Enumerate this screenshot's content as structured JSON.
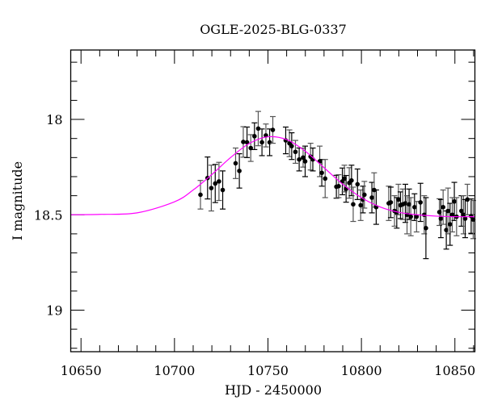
{
  "chart_data": {
    "type": "scatter",
    "title": "OGLE-2025-BLG-0337",
    "xlabel": "HJD - 2450000",
    "ylabel": "I magnitude",
    "xlim": [
      10644.5,
      10860.7
    ],
    "ylim": [
      19.218,
      17.636
    ],
    "y_inverted": true,
    "xticks": [
      10650,
      10700,
      10750,
      10800,
      10850
    ],
    "xtick_labels": [
      "10650",
      "10700",
      "10750",
      "10800",
      "10850"
    ],
    "yticks": [
      18,
      18.5,
      19
    ],
    "ytick_labels": [
      "18",
      "18.5",
      "19"
    ],
    "grid": false,
    "colors": {
      "data": "#000000",
      "model": "#ff00ff"
    },
    "series": [
      {
        "kind": "points-with-errorbars",
        "x": [
          10713.9,
          10717.7,
          10719.7,
          10721.8,
          10723.8,
          10725.8,
          10732.7,
          10734.7,
          10736.8,
          10738.8,
          10740.8,
          10742.8,
          10744.8,
          10746.8,
          10748.9,
          10750.9,
          10752.6,
          10759.5,
          10761.5,
          10762.7,
          10764.7,
          10766.7,
          10768.8,
          10769.9,
          10772.8,
          10774.0,
          10777.7,
          10778.8,
          10780.6,
          10786.6,
          10787.8,
          10789.8,
          10790.9,
          10791.8,
          10793.5,
          10794.7,
          10795.6,
          10797.9,
          10799.6,
          10800.8,
          10801.6,
          10805.6,
          10806.8,
          10807.9,
          10814.6,
          10815.7,
          10817.7,
          10818.9,
          10819.8,
          10820.9,
          10822.1,
          10823.5,
          10824.4,
          10825.5,
          10826.4,
          10828.4,
          10829.5,
          10831.6,
          10833.6,
          10834.5,
          10841.7,
          10842.5,
          10843.7,
          10845.4,
          10846.3,
          10847.4,
          10848.6,
          10849.7,
          10850.9,
          10853.5,
          10854.6,
          10855.5,
          10856.7,
          10858.7,
          10859.8
        ],
        "y": [
          18.395,
          18.307,
          18.36,
          18.336,
          18.325,
          18.37,
          18.23,
          18.27,
          18.118,
          18.12,
          18.15,
          18.088,
          18.048,
          18.12,
          18.084,
          18.12,
          18.055,
          18.11,
          18.125,
          18.14,
          18.17,
          18.21,
          18.2,
          18.22,
          18.195,
          18.21,
          18.22,
          18.28,
          18.31,
          18.353,
          18.35,
          18.325,
          18.31,
          18.364,
          18.333,
          18.32,
          18.445,
          18.34,
          18.45,
          18.42,
          18.395,
          18.41,
          18.37,
          18.46,
          18.44,
          18.435,
          18.48,
          18.49,
          18.42,
          18.45,
          18.445,
          18.44,
          18.5,
          18.445,
          18.51,
          18.46,
          18.51,
          18.435,
          18.5,
          18.57,
          18.486,
          18.52,
          18.46,
          18.58,
          18.48,
          18.55,
          18.5,
          18.43,
          18.51,
          18.48,
          18.5,
          18.52,
          18.42,
          18.507,
          18.525
        ],
        "err": [
          0.075,
          0.11,
          0.12,
          0.1,
          0.1,
          0.1,
          0.08,
          0.09,
          0.08,
          0.08,
          0.07,
          0.07,
          0.09,
          0.07,
          0.06,
          0.07,
          0.07,
          0.07,
          0.07,
          0.07,
          0.06,
          0.06,
          0.05,
          0.08,
          0.07,
          0.06,
          0.08,
          0.07,
          0.1,
          0.06,
          0.06,
          0.07,
          0.07,
          0.07,
          0.08,
          0.08,
          0.09,
          0.08,
          0.08,
          0.07,
          0.07,
          0.08,
          0.09,
          0.09,
          0.09,
          0.08,
          0.08,
          0.08,
          0.08,
          0.07,
          0.08,
          0.1,
          0.1,
          0.08,
          0.1,
          0.07,
          0.08,
          0.1,
          0.1,
          0.16,
          0.07,
          0.1,
          0.09,
          0.1,
          0.12,
          0.11,
          0.09,
          0.1,
          0.1,
          0.08,
          0.1,
          0.1,
          0.08,
          0.09,
          0.1
        ]
      },
      {
        "kind": "model-curve",
        "x": [
          10644.5,
          10660,
          10680,
          10700,
          10710,
          10720,
          10730,
          10740,
          10750,
          10760,
          10770,
          10780,
          10790,
          10800,
          10810,
          10820,
          10830,
          10840,
          10850,
          10860.7
        ],
        "y": [
          18.5,
          18.498,
          18.49,
          18.432,
          18.37,
          18.289,
          18.2,
          18.126,
          18.091,
          18.106,
          18.167,
          18.253,
          18.34,
          18.41,
          18.459,
          18.487,
          18.5,
          18.507,
          18.51,
          18.51
        ]
      }
    ]
  }
}
